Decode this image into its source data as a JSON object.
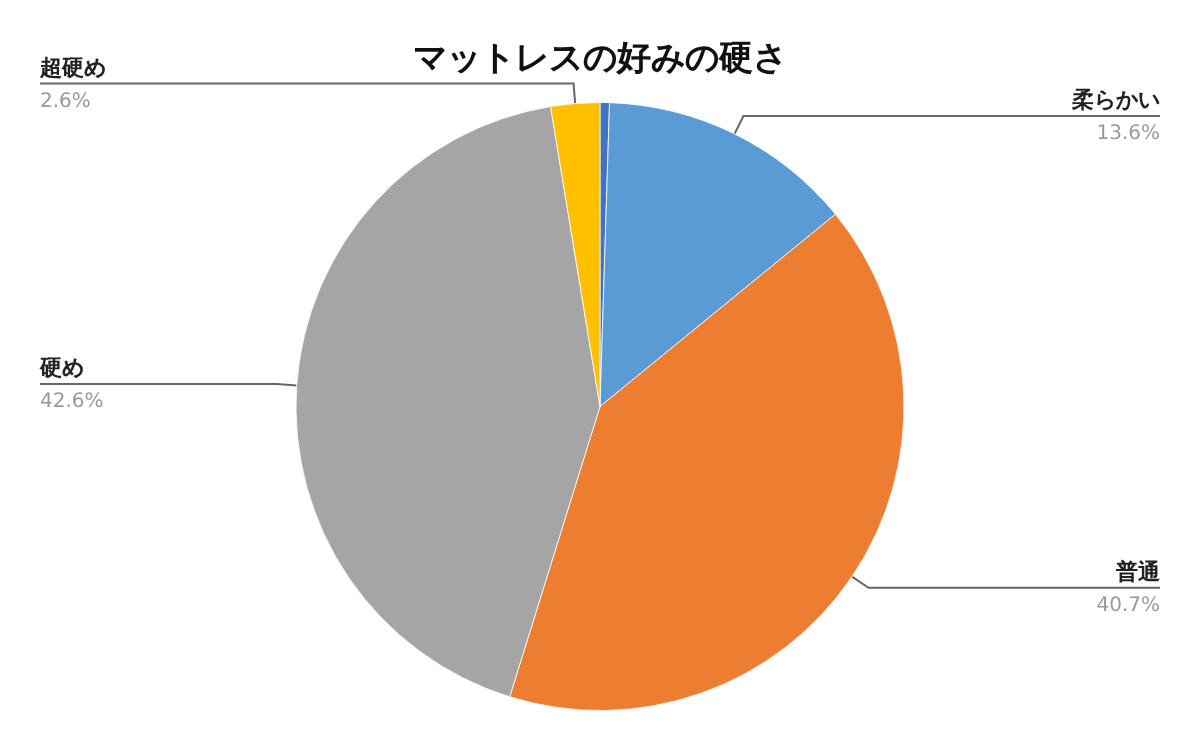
{
  "chart_data": {
    "type": "pie",
    "title": "マットレスの好みの硬さ",
    "categories": [
      null,
      "柔らかい",
      "普通",
      "硬め",
      "超硬め"
    ],
    "values": [
      0.5,
      13.6,
      40.7,
      42.6,
      2.6
    ],
    "value_labels": [
      null,
      "13.6%",
      "40.7%",
      "42.6%",
      "2.6%"
    ],
    "colors": [
      "#4472c4",
      "#5b9bd5",
      "#ed7d31",
      "#a5a5a5",
      "#ffc000"
    ],
    "legend": false
  }
}
